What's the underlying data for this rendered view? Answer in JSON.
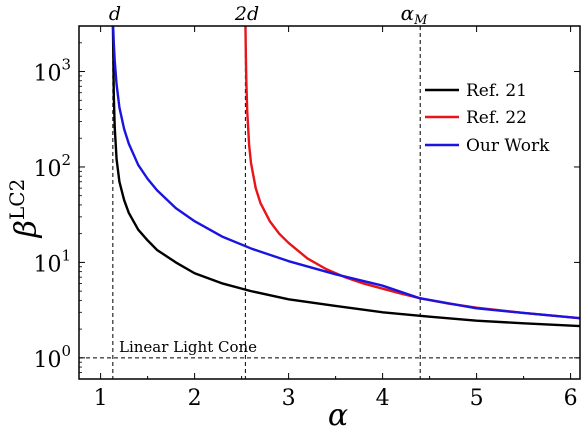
{
  "chart_data": {
    "type": "line",
    "xlabel": "α",
    "ylabel": "β",
    "ylabel_superscript": "LC2",
    "xscale": "linear",
    "yscale": "log",
    "xlim": [
      0.77,
      6.1
    ],
    "ylim": [
      0.6,
      3000
    ],
    "grid": false,
    "legend_position": "upper-right",
    "x_ticks": [
      {
        "value": 1,
        "label": "1"
      },
      {
        "value": 2,
        "label": "2"
      },
      {
        "value": 3,
        "label": "3"
      },
      {
        "value": 4,
        "label": "4"
      },
      {
        "value": 5,
        "label": "5"
      },
      {
        "value": 6,
        "label": "6"
      }
    ],
    "y_ticks": [
      {
        "value": 1,
        "base": "10",
        "exp": "0"
      },
      {
        "value": 10,
        "base": "10",
        "exp": "1"
      },
      {
        "value": 100,
        "base": "10",
        "exp": "2"
      },
      {
        "value": 1000,
        "base": "10",
        "exp": "3"
      }
    ],
    "vlines": [
      {
        "x": 1.13,
        "label": "d",
        "label_sub": ""
      },
      {
        "x": 2.54,
        "label": "2d",
        "label_sub": ""
      },
      {
        "x": 4.4,
        "label": "α",
        "label_sub": "M"
      }
    ],
    "hline": {
      "y": 1,
      "label": "Linear Light Cone"
    },
    "series": [
      {
        "name": "Ref. 21",
        "color": "#000000",
        "x": [
          1.131,
          1.135,
          1.14,
          1.15,
          1.17,
          1.2,
          1.25,
          1.3,
          1.4,
          1.5,
          1.6,
          1.8,
          2.0,
          2.3,
          2.6,
          3.0,
          3.5,
          4.0,
          4.5,
          5.0,
          5.5,
          6.1
        ],
        "y": [
          3000,
          1500,
          560,
          260,
          120,
          70,
          45,
          33,
          22,
          17,
          13.5,
          10.0,
          7.7,
          6.0,
          5.0,
          4.1,
          3.5,
          3.0,
          2.7,
          2.45,
          2.3,
          2.15
        ]
      },
      {
        "name": "Ref. 22",
        "color": "#e8141a",
        "x": [
          2.541,
          2.545,
          2.55,
          2.56,
          2.58,
          2.6,
          2.65,
          2.7,
          2.8,
          2.9,
          3.0,
          3.2,
          3.4,
          3.6,
          3.8,
          4.0,
          4.2,
          4.4,
          4.7,
          5.0,
          5.5,
          6.1
        ],
        "y": [
          3000,
          1500,
          800,
          380,
          170,
          110,
          60,
          42,
          27,
          20,
          16,
          11,
          8.5,
          7.0,
          6.0,
          5.3,
          4.7,
          4.2,
          3.7,
          3.35,
          2.95,
          2.6
        ]
      },
      {
        "name": "Our Work",
        "color": "#1a14e0",
        "x": [
          1.131,
          1.135,
          1.14,
          1.15,
          1.17,
          1.2,
          1.25,
          1.3,
          1.4,
          1.5,
          1.6,
          1.8,
          2.0,
          2.3,
          2.6,
          3.0,
          3.5,
          4.0,
          4.4,
          5.0,
          5.5,
          6.1
        ],
        "y": [
          3000,
          2700,
          2000,
          1300,
          730,
          420,
          250,
          175,
          105,
          75,
          57,
          37,
          27,
          18.5,
          14,
          10.3,
          7.5,
          5.7,
          4.2,
          3.3,
          2.95,
          2.6
        ]
      }
    ]
  }
}
